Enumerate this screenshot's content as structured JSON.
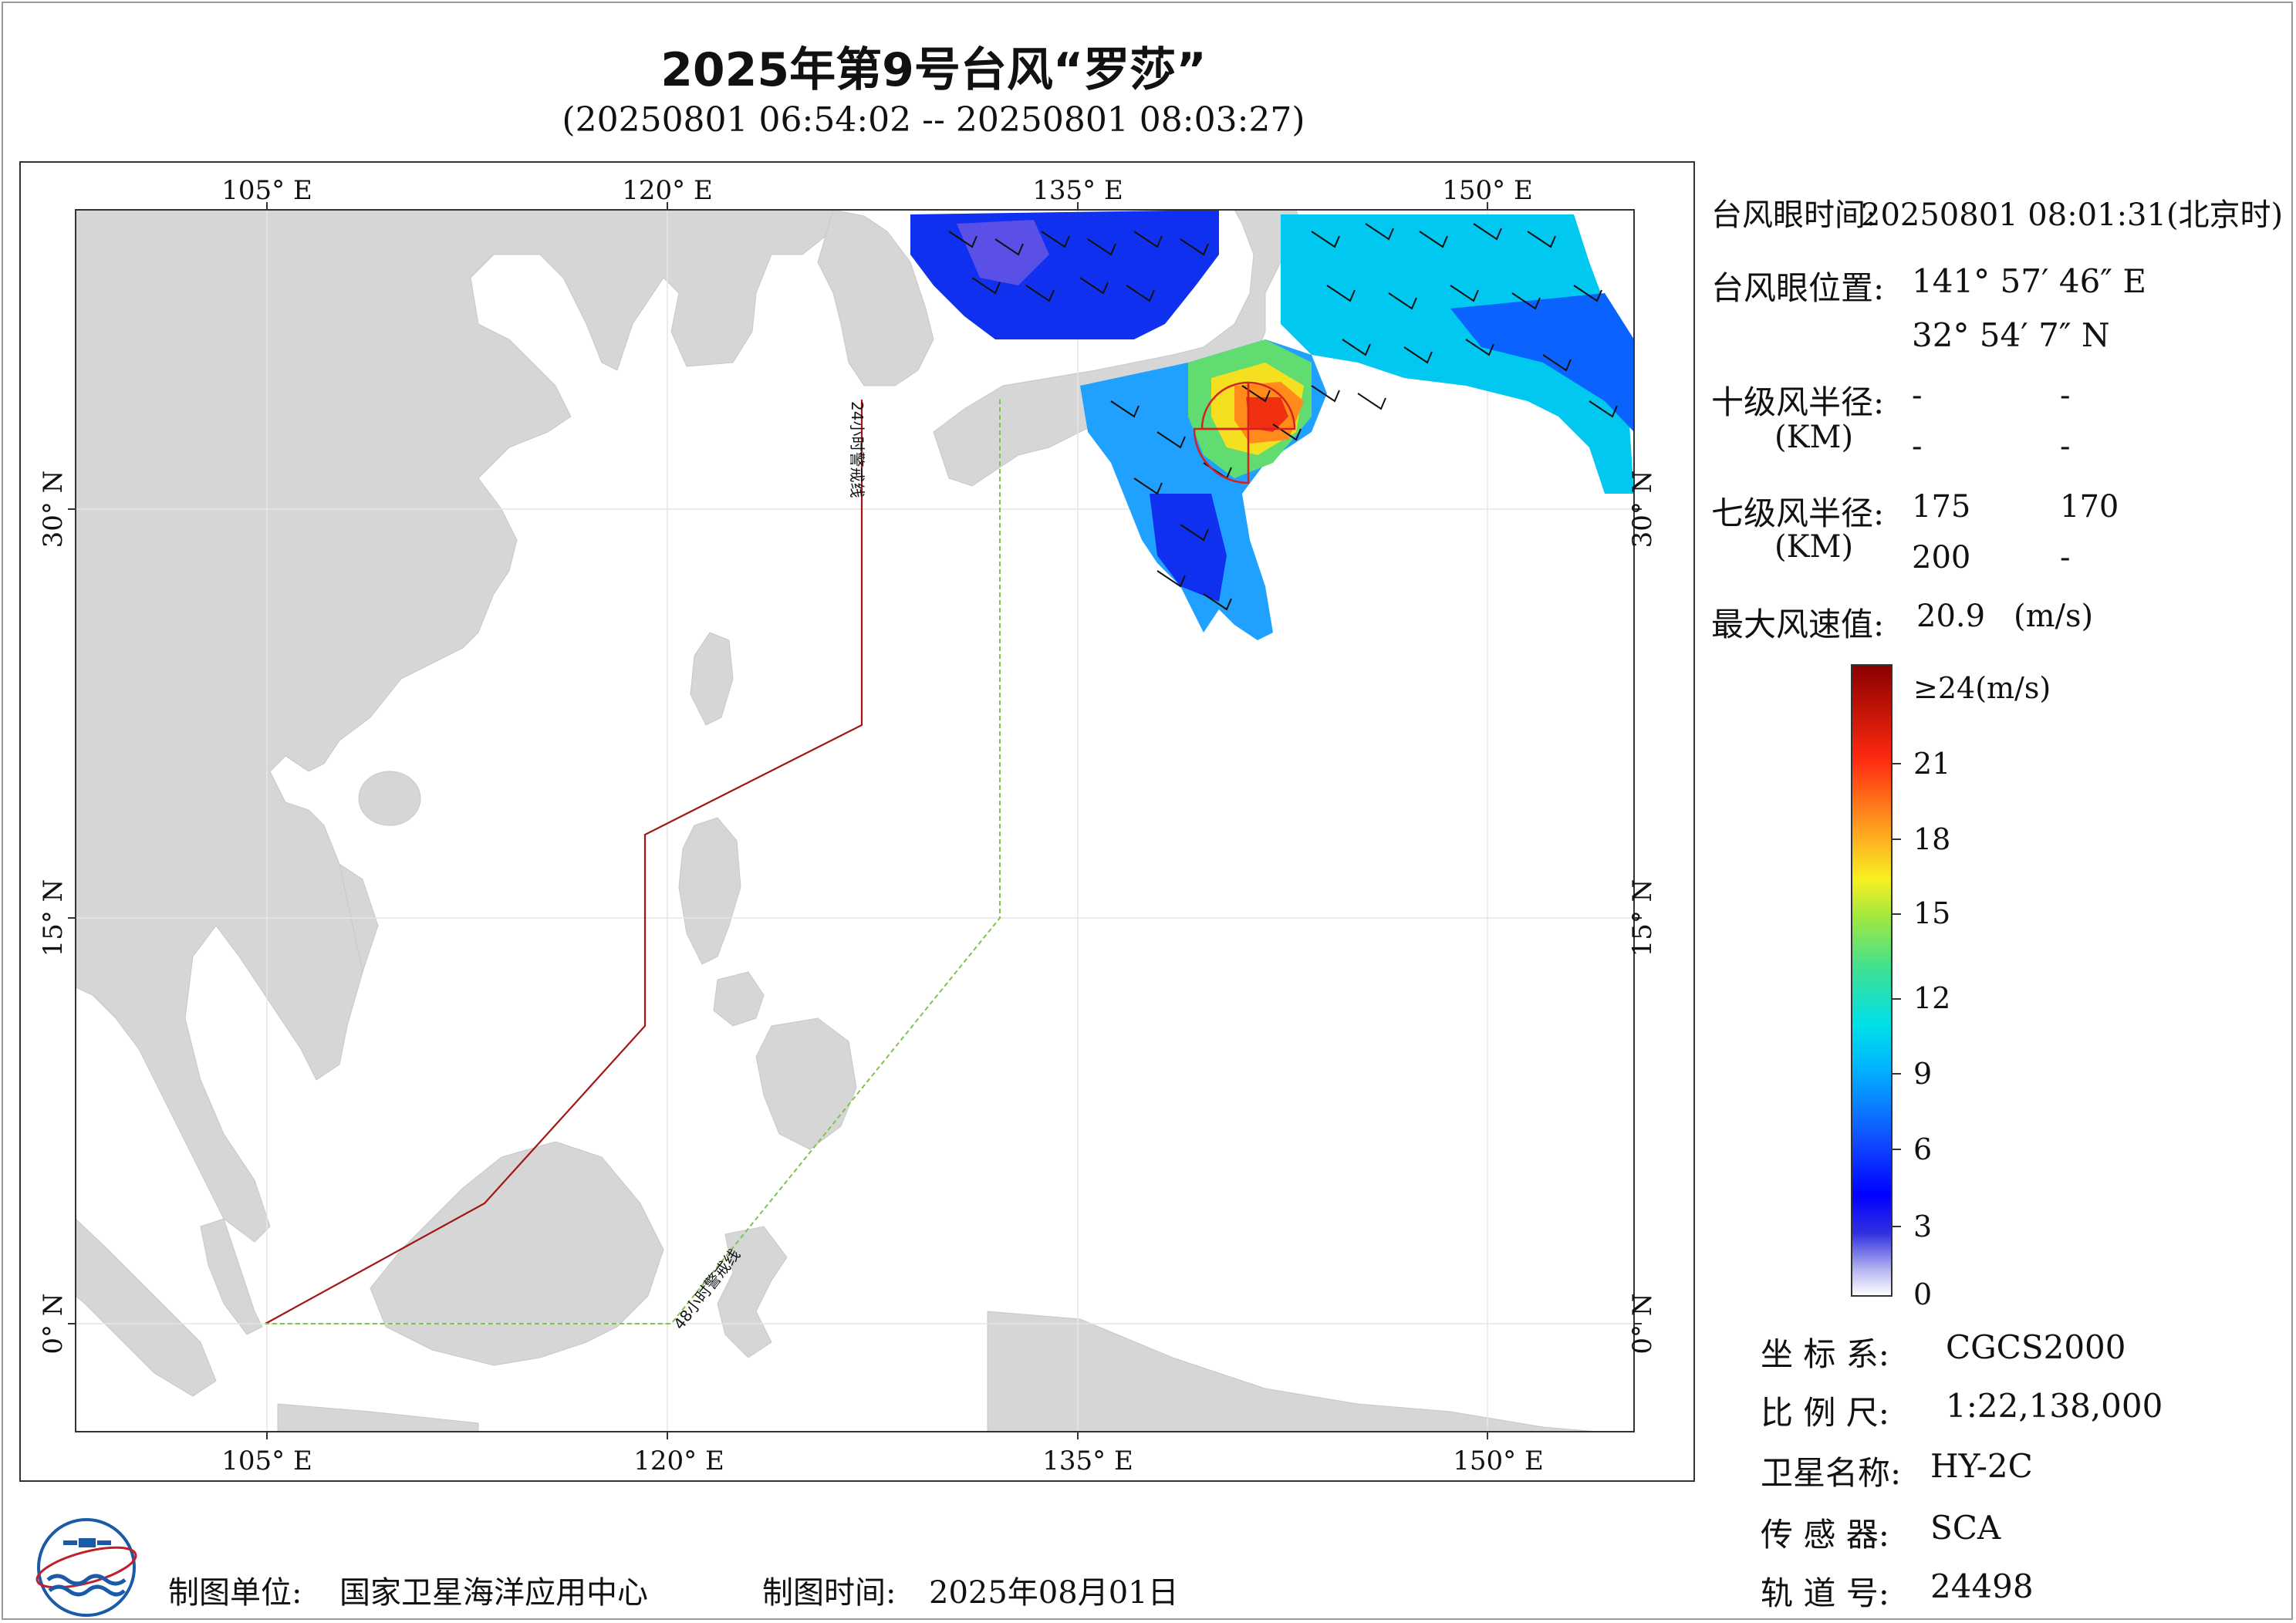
{
  "title": "2025年第9号台风“罗莎”",
  "subtitle": "(20250801 06:54:02 -- 20250801 08:03:27)",
  "map": {
    "lon_ticks": [
      "105° E",
      "120° E",
      "135° E",
      "150° E"
    ],
    "lat_ticks": [
      "30° N",
      "15° N",
      "0° N"
    ],
    "warning_line_24h": "24小时警戒线",
    "warning_line_48h": "48小时警戒线",
    "colors": {
      "land": "#d6d6d6",
      "ocean": "#ffffff",
      "line_24h": "#a31515",
      "line_48h": "#7fc34a",
      "wind_radius": "#d62020"
    }
  },
  "info": {
    "eye_time_label": "台风眼时间:",
    "eye_time_value": "20250801 08:01:31(北京时)",
    "eye_pos_label": "台风眼位置:",
    "eye_lon": "141° 57′ 46″ E",
    "eye_lat": "32° 54′ 7″ N",
    "r10_label": "十级风半径:",
    "r10_unit": "(KM)",
    "r10_values": [
      "-",
      "-",
      "-",
      "-"
    ],
    "r7_label": "七级风半径:",
    "r7_unit": "(KM)",
    "r7_values": [
      "175",
      "170",
      "200",
      "-"
    ],
    "max_wind_label": "最大风速值:",
    "max_wind_value": "20.9",
    "max_wind_unit": "(m/s)"
  },
  "legend": {
    "labels": [
      "≥24(m/s)",
      "21",
      "18",
      "15",
      "12",
      "9",
      "6",
      "3",
      "0"
    ]
  },
  "meta": {
    "crs_label": "坐 标 系:",
    "crs_value": "CGCS2000",
    "scale_label": "比 例 尺:",
    "scale_value": "1:22,138,000",
    "satellite_label": "卫星名称:",
    "satellite_value": "HY-2C",
    "sensor_label": "传 感 器:",
    "sensor_value": "SCA",
    "orbit_label": "轨 道 号:",
    "orbit_value": "24498"
  },
  "footer": {
    "producer_label": "制图单位:",
    "producer_value": "国家卫星海洋应用中心",
    "date_label": "制图时间:",
    "date_value": "2025年08月01日"
  }
}
